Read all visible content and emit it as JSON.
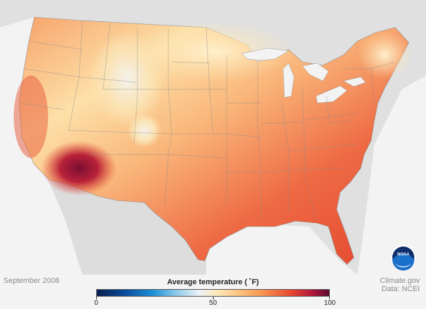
{
  "map": {
    "date": "September 2008",
    "credit_line1": "Climate.gov",
    "credit_line2": "Data: NCEI",
    "logo_text": "NOAA"
  },
  "legend": {
    "title": "Average temperature ( ˚F)",
    "ticks": [
      {
        "value": 0,
        "label": "0"
      },
      {
        "value": 50,
        "label": "50"
      },
      {
        "value": 100,
        "label": "100"
      }
    ],
    "min": 0,
    "max": 100,
    "colors": [
      "#08204f",
      "#1a8fd6",
      "#ecf2f7",
      "#fdc07a",
      "#e7452f",
      "#5a0a30"
    ]
  },
  "colors": {
    "land_other": "#e0e0e0",
    "water": "#f3f3f3",
    "noaa_blue": "#1a6fc9",
    "noaa_navy": "#0d2d6c"
  }
}
